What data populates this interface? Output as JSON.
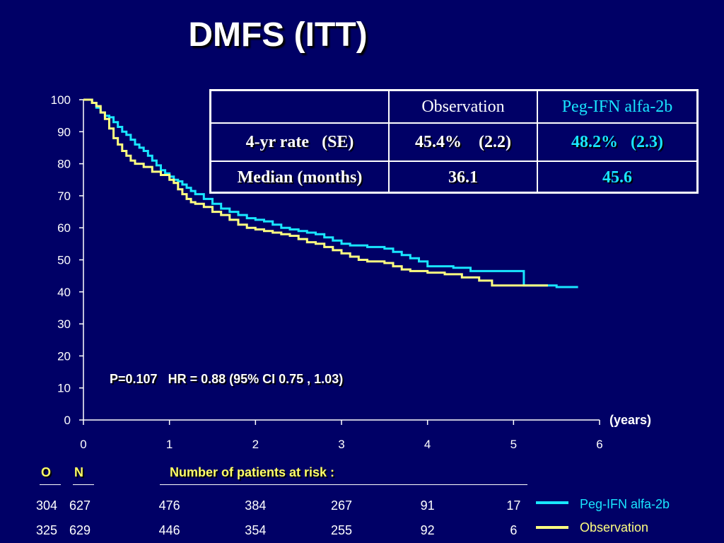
{
  "title": "DMFS (ITT)",
  "colors": {
    "background": "#000066",
    "peg": "#19e6ff",
    "observation": "#ffff80",
    "text": "#ffffff",
    "header_text": "#ffff66"
  },
  "stats_table": {
    "headers": [
      "",
      "Observation",
      "Peg-IFN alfa-2b"
    ],
    "rows": [
      {
        "label": "4-yr rate   (SE)",
        "observation": "45.4%    (2.2)",
        "peg": "48.2%   (2.3)"
      },
      {
        "label": "Median (months)",
        "observation": "36.1",
        "peg": "45.6"
      }
    ]
  },
  "annotation": "P=0.107   HR = 0.88 (95% CI 0.75 , 1.03)",
  "at_risk": {
    "col_o": "O",
    "col_n": "N",
    "header": "Number of patients at risk :",
    "rows": [
      {
        "o": "304",
        "n": "627",
        "values": [
          "476",
          "384",
          "267",
          "91",
          "17"
        ]
      },
      {
        "o": "325",
        "n": "629",
        "values": [
          "446",
          "354",
          "255",
          "92",
          "6"
        ]
      }
    ]
  },
  "legend": [
    {
      "label": "Peg-IFN alfa-2b",
      "color": "#19e6ff"
    },
    {
      "label": "Observation",
      "color": "#ffff80"
    }
  ],
  "chart_data": {
    "type": "line",
    "step": true,
    "title": "DMFS (ITT)",
    "xlabel": "(years)",
    "ylabel": "",
    "xlim": [
      0,
      6
    ],
    "ylim": [
      0,
      100
    ],
    "xticks": [
      0,
      1,
      2,
      3,
      4,
      5,
      6
    ],
    "yticks": [
      0,
      10,
      20,
      30,
      40,
      50,
      60,
      70,
      80,
      90,
      100
    ],
    "grid": false,
    "legend_position": "bottom-right",
    "series": [
      {
        "name": "Peg-IFN alfa-2b",
        "color": "#19e6ff",
        "points": [
          [
            0,
            100
          ],
          [
            0.05,
            100
          ],
          [
            0.1,
            99
          ],
          [
            0.15,
            97.5
          ],
          [
            0.2,
            96
          ],
          [
            0.25,
            95
          ],
          [
            0.3,
            94.5
          ],
          [
            0.35,
            93
          ],
          [
            0.4,
            91.5
          ],
          [
            0.45,
            90
          ],
          [
            0.5,
            89
          ],
          [
            0.55,
            87.5
          ],
          [
            0.6,
            86
          ],
          [
            0.65,
            85
          ],
          [
            0.7,
            84
          ],
          [
            0.75,
            82.5
          ],
          [
            0.8,
            81
          ],
          [
            0.85,
            79.5
          ],
          [
            0.9,
            78
          ],
          [
            0.95,
            77
          ],
          [
            1.0,
            76
          ],
          [
            1.05,
            75
          ],
          [
            1.1,
            74.5
          ],
          [
            1.15,
            73.5
          ],
          [
            1.2,
            72.5
          ],
          [
            1.25,
            71.5
          ],
          [
            1.3,
            70.5
          ],
          [
            1.4,
            69
          ],
          [
            1.5,
            67.5
          ],
          [
            1.6,
            66
          ],
          [
            1.7,
            65
          ],
          [
            1.8,
            64
          ],
          [
            1.9,
            63
          ],
          [
            2.0,
            62.5
          ],
          [
            2.1,
            62
          ],
          [
            2.2,
            61
          ],
          [
            2.3,
            60
          ],
          [
            2.4,
            59.5
          ],
          [
            2.5,
            59
          ],
          [
            2.6,
            58.5
          ],
          [
            2.7,
            58
          ],
          [
            2.8,
            57
          ],
          [
            2.9,
            56
          ],
          [
            3.0,
            55
          ],
          [
            3.1,
            54.5
          ],
          [
            3.3,
            54
          ],
          [
            3.5,
            53.5
          ],
          [
            3.6,
            52.5
          ],
          [
            3.7,
            51.5
          ],
          [
            3.8,
            50.5
          ],
          [
            3.9,
            49.5
          ],
          [
            4.0,
            48
          ],
          [
            4.3,
            47.5
          ],
          [
            4.5,
            46.5
          ],
          [
            5.0,
            46.5
          ],
          [
            5.12,
            42
          ],
          [
            5.3,
            42
          ],
          [
            5.5,
            41.5
          ],
          [
            5.75,
            41.5
          ]
        ]
      },
      {
        "name": "Observation",
        "color": "#ffff80",
        "points": [
          [
            0,
            100
          ],
          [
            0.05,
            100
          ],
          [
            0.1,
            99
          ],
          [
            0.15,
            98
          ],
          [
            0.2,
            96
          ],
          [
            0.25,
            94
          ],
          [
            0.3,
            91
          ],
          [
            0.35,
            88
          ],
          [
            0.4,
            86
          ],
          [
            0.45,
            84
          ],
          [
            0.5,
            82.5
          ],
          [
            0.55,
            81
          ],
          [
            0.6,
            80
          ],
          [
            0.7,
            79
          ],
          [
            0.8,
            77.5
          ],
          [
            0.9,
            76.5
          ],
          [
            1.0,
            75
          ],
          [
            1.05,
            74
          ],
          [
            1.1,
            72
          ],
          [
            1.15,
            70.5
          ],
          [
            1.2,
            69
          ],
          [
            1.25,
            68
          ],
          [
            1.3,
            67.5
          ],
          [
            1.4,
            66.5
          ],
          [
            1.5,
            65
          ],
          [
            1.6,
            64
          ],
          [
            1.7,
            62.5
          ],
          [
            1.8,
            61
          ],
          [
            1.9,
            60
          ],
          [
            2.0,
            59.5
          ],
          [
            2.1,
            59
          ],
          [
            2.2,
            58.5
          ],
          [
            2.3,
            58
          ],
          [
            2.4,
            57.5
          ],
          [
            2.5,
            56.5
          ],
          [
            2.6,
            55.5
          ],
          [
            2.7,
            55
          ],
          [
            2.8,
            54
          ],
          [
            2.9,
            53
          ],
          [
            3.0,
            52
          ],
          [
            3.1,
            51
          ],
          [
            3.2,
            50
          ],
          [
            3.3,
            49.5
          ],
          [
            3.5,
            49
          ],
          [
            3.6,
            48
          ],
          [
            3.7,
            47
          ],
          [
            3.8,
            46.5
          ],
          [
            4.0,
            46
          ],
          [
            4.2,
            45.5
          ],
          [
            4.4,
            44.5
          ],
          [
            4.6,
            43.5
          ],
          [
            4.75,
            42
          ],
          [
            5.0,
            42
          ],
          [
            5.2,
            42
          ],
          [
            5.4,
            42
          ]
        ]
      }
    ]
  }
}
